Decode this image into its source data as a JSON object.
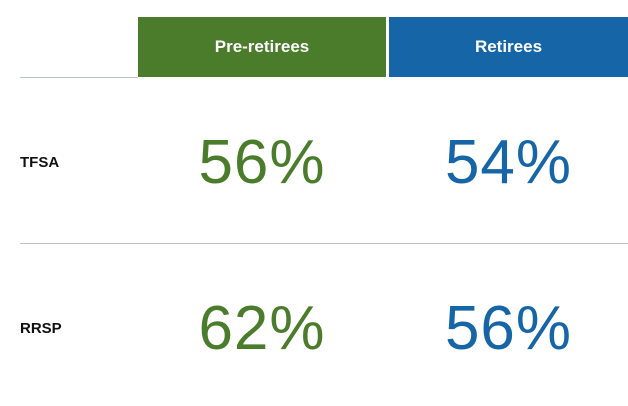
{
  "table": {
    "columns": [
      "Pre-retirees",
      "Retirees"
    ],
    "rows": [
      {
        "label": "TFSA",
        "cells": [
          "56%",
          "54%"
        ]
      },
      {
        "label": "RRSP",
        "cells": [
          "62%",
          "56%"
        ]
      }
    ]
  }
}
